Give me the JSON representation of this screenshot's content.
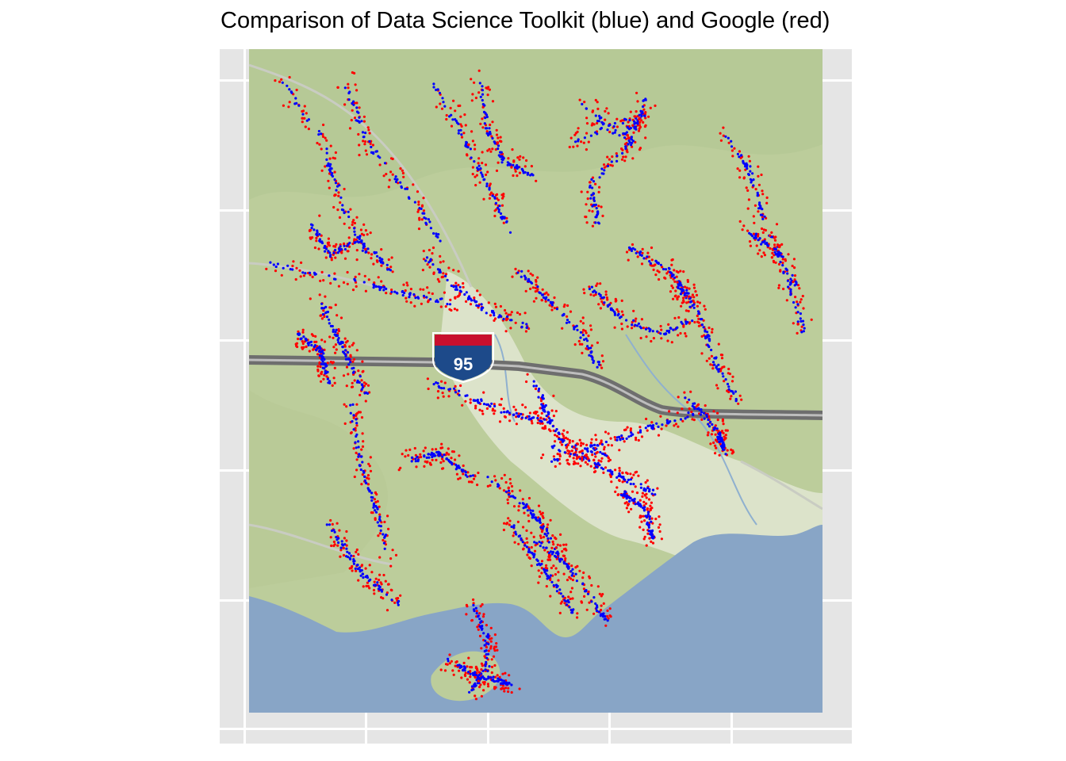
{
  "title": "Comparison of Data Science Toolkit (blue) and Google (red)",
  "colors": {
    "panel_bg": "#e5e5e5",
    "grid": "#ffffff",
    "dst_points": "#0000ff",
    "google_points": "#ff0000",
    "land": "#bccd9b",
    "water": "#88a5c6",
    "highway": "#6e6e6e",
    "shield_blue": "#1d4a8a",
    "shield_red": "#c8102e"
  },
  "map": {
    "highway_shield_label": "95",
    "point_series": [
      {
        "name": "Data Science Toolkit",
        "color": "#0000ff",
        "shape": "dot"
      },
      {
        "name": "Google",
        "color": "#ff0000",
        "shape": "dot"
      }
    ]
  }
}
